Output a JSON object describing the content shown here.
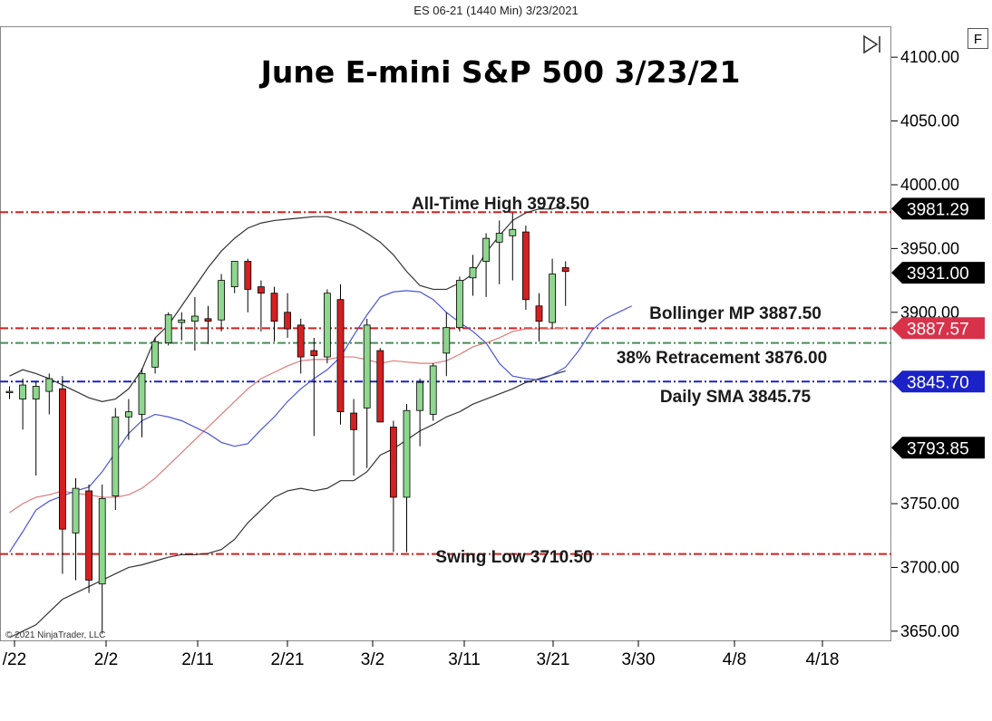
{
  "window": {
    "header": "ES 06-21 (1440 Min)  3/23/2021",
    "copyright": "© 2021 NinjaTrader, LLC",
    "f_button": "F",
    "scroll_end_icon": "play-to-end-icon"
  },
  "colors": {
    "up_candle": "#8fd68f",
    "down_candle": "#d42020",
    "bb_band": "#333333",
    "bb_mid": "#e07a7a",
    "sma_line": "#4a55d8",
    "ath_line": "#d42020",
    "retracement_line": "#4a8a5a",
    "sma_level_line": "#1a22c8",
    "bollinger_label_bg": "#d8324a",
    "sma_label_bg": "#1a22c8"
  },
  "chart_data": {
    "type": "candlestick",
    "title": "June E-mini S&P 500 3/23/21",
    "ylim": [
      3630,
      4120
    ],
    "yticks": [
      {
        "value": 4100,
        "label": "4100.00"
      },
      {
        "value": 4050,
        "label": "4050.00"
      },
      {
        "value": 4000,
        "label": "4000.00"
      },
      {
        "value": 3950,
        "label": "3950.00"
      },
      {
        "value": 3900,
        "label": "3900.00"
      },
      {
        "value": 3750,
        "label": "3750.00"
      },
      {
        "value": 3700,
        "label": "3700.00"
      },
      {
        "value": 3650,
        "label": "3650.00"
      }
    ],
    "xticks": [
      "/22",
      "2/2",
      "2/11",
      "2/21",
      "3/2",
      "3/11",
      "3/21",
      "3/30",
      "4/8",
      "4/18"
    ],
    "candles": [
      {
        "o": 3838,
        "h": 3842,
        "l": 3832,
        "c": 3838
      },
      {
        "o": 3832,
        "h": 3848,
        "l": 3808,
        "c": 3843
      },
      {
        "o": 3832,
        "h": 3846,
        "l": 3772,
        "c": 3842
      },
      {
        "o": 3838,
        "h": 3852,
        "l": 3820,
        "c": 3848
      },
      {
        "o": 3840,
        "h": 3850,
        "l": 3695,
        "c": 3730
      },
      {
        "o": 3727,
        "h": 3770,
        "l": 3690,
        "c": 3762
      },
      {
        "o": 3760,
        "h": 3765,
        "l": 3680,
        "c": 3690
      },
      {
        "o": 3687,
        "h": 3765,
        "l": 3648,
        "c": 3754
      },
      {
        "o": 3756,
        "h": 3825,
        "l": 3745,
        "c": 3818
      },
      {
        "o": 3818,
        "h": 3832,
        "l": 3800,
        "c": 3822
      },
      {
        "o": 3820,
        "h": 3856,
        "l": 3802,
        "c": 3852
      },
      {
        "o": 3857,
        "h": 3880,
        "l": 3852,
        "c": 3877
      },
      {
        "o": 3876,
        "h": 3900,
        "l": 3874,
        "c": 3898
      },
      {
        "o": 3892,
        "h": 3900,
        "l": 3878,
        "c": 3894
      },
      {
        "o": 3893,
        "h": 3912,
        "l": 3870,
        "c": 3897
      },
      {
        "o": 3895,
        "h": 3905,
        "l": 3875,
        "c": 3893
      },
      {
        "o": 3894,
        "h": 3930,
        "l": 3885,
        "c": 3925
      },
      {
        "o": 3920,
        "h": 3940,
        "l": 3915,
        "c": 3940
      },
      {
        "o": 3940,
        "h": 3942,
        "l": 3900,
        "c": 3918
      },
      {
        "o": 3920,
        "h": 3925,
        "l": 3885,
        "c": 3915
      },
      {
        "o": 3915,
        "h": 3920,
        "l": 3877,
        "c": 3893
      },
      {
        "o": 3900,
        "h": 3915,
        "l": 3880,
        "c": 3887
      },
      {
        "o": 3890,
        "h": 3895,
        "l": 3852,
        "c": 3865
      },
      {
        "o": 3870,
        "h": 3880,
        "l": 3803,
        "c": 3866
      },
      {
        "o": 3865,
        "h": 3918,
        "l": 3860,
        "c": 3915
      },
      {
        "o": 3910,
        "h": 3922,
        "l": 3812,
        "c": 3822
      },
      {
        "o": 3821,
        "h": 3832,
        "l": 3772,
        "c": 3808
      },
      {
        "o": 3825,
        "h": 3895,
        "l": 3778,
        "c": 3890
      },
      {
        "o": 3870,
        "h": 3872,
        "l": 3815,
        "c": 3814
      },
      {
        "o": 3810,
        "h": 3815,
        "l": 3712,
        "c": 3755
      },
      {
        "o": 3755,
        "h": 3828,
        "l": 3712,
        "c": 3823
      },
      {
        "o": 3823,
        "h": 3848,
        "l": 3795,
        "c": 3845
      },
      {
        "o": 3820,
        "h": 3860,
        "l": 3815,
        "c": 3858
      },
      {
        "o": 3868,
        "h": 3900,
        "l": 3850,
        "c": 3888
      },
      {
        "o": 3888,
        "h": 3928,
        "l": 3885,
        "c": 3925
      },
      {
        "o": 3927,
        "h": 3945,
        "l": 3913,
        "c": 3935
      },
      {
        "o": 3940,
        "h": 3962,
        "l": 3912,
        "c": 3958
      },
      {
        "o": 3955,
        "h": 3972,
        "l": 3922,
        "c": 3962
      },
      {
        "o": 3960,
        "h": 3978,
        "l": 3925,
        "c": 3965
      },
      {
        "o": 3963,
        "h": 3968,
        "l": 3902,
        "c": 3910
      },
      {
        "o": 3905,
        "h": 3915,
        "l": 3877,
        "c": 3893
      },
      {
        "o": 3892,
        "h": 3942,
        "l": 3887,
        "c": 3930
      },
      {
        "o": 3935,
        "h": 3940,
        "l": 3905,
        "c": 3932
      }
    ],
    "bb_upper": [
      3850,
      3855,
      3852,
      3848,
      3843,
      3838,
      3833,
      3830,
      3832,
      3840,
      3855,
      3880,
      3890,
      3905,
      3920,
      3935,
      3948,
      3958,
      3966,
      3970,
      3972,
      3973,
      3974,
      3975,
      3975,
      3972,
      3968,
      3962,
      3955,
      3945,
      3932,
      3921,
      3918,
      3918,
      3923,
      3930,
      3947,
      3960,
      3972,
      3978,
      3981,
      3981,
      3984
    ],
    "bb_mid": [
      3743,
      3750,
      3755,
      3757,
      3760,
      3758,
      3757,
      3755,
      3755,
      3757,
      3762,
      3770,
      3780,
      3790,
      3800,
      3810,
      3820,
      3830,
      3840,
      3848,
      3853,
      3858,
      3862,
      3863,
      3863,
      3865,
      3865,
      3863,
      3860,
      3862,
      3861,
      3860,
      3860,
      3862,
      3867,
      3873,
      3876,
      3880,
      3885,
      3887,
      3887,
      3887,
      3888
    ],
    "bb_lower": [
      3645,
      3650,
      3655,
      3665,
      3675,
      3680,
      3685,
      3690,
      3695,
      3700,
      3702,
      3705,
      3708,
      3710,
      3710,
      3711,
      3714,
      3722,
      3735,
      3745,
      3755,
      3760,
      3762,
      3760,
      3762,
      3768,
      3768,
      3775,
      3788,
      3793,
      3800,
      3807,
      3812,
      3818,
      3822,
      3828,
      3832,
      3836,
      3840,
      3845,
      3848,
      3851,
      3854
    ],
    "sma": [
      3712,
      3728,
      3745,
      3752,
      3756,
      3760,
      3763,
      3775,
      3790,
      3805,
      3815,
      3820,
      3818,
      3815,
      3810,
      3805,
      3798,
      3795,
      3797,
      3808,
      3818,
      3830,
      3840,
      3848,
      3855,
      3865,
      3882,
      3898,
      3912,
      3916,
      3917,
      3916,
      3910,
      3900,
      3892,
      3885,
      3876,
      3860,
      3850,
      3848,
      3847,
      3851,
      3857,
      3870,
      3886,
      3895,
      3900,
      3905
    ],
    "levels": [
      {
        "name": "All-Time High",
        "label": "All-Time High 3978.50",
        "value": 3978.5,
        "style": "ath"
      },
      {
        "name": "Bollinger MP",
        "label": "Bollinger MP 3887.50",
        "value": 3887.5,
        "style": "bmp"
      },
      {
        "name": "38% Retracement",
        "label": "38% Retracement 3876.00",
        "value": 3876.0,
        "style": "ret"
      },
      {
        "name": "Daily SMA",
        "label": "Daily SMA 3845.75",
        "value": 3845.75,
        "style": "sma"
      },
      {
        "name": "Swing Low",
        "label": "Swing Low 3710.50",
        "value": 3710.5,
        "style": "low"
      }
    ],
    "price_markers": [
      {
        "value": 3981.29,
        "label": "3981.29",
        "color": "#000000"
      },
      {
        "value": 3931.0,
        "label": "3931.00",
        "color": "#000000"
      },
      {
        "value": 3887.57,
        "label": "3887.57",
        "color": "#d8324a"
      },
      {
        "value": 3845.7,
        "label": "3845.70",
        "color": "#1a22c8"
      },
      {
        "value": 3793.85,
        "label": "3793.85",
        "color": "#000000"
      }
    ]
  }
}
